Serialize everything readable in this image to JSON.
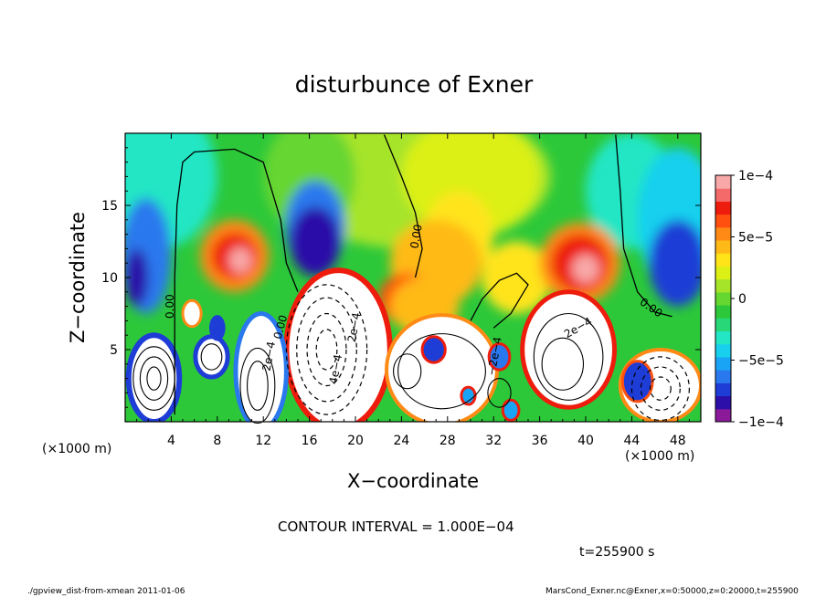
{
  "chart_data": {
    "type": "heatmap",
    "title": "disturbunce of Exner",
    "xlabel": "X−coordinate",
    "ylabel": "Z−coordinate",
    "x_unit": "(×1000 m)",
    "y_unit": "(×1000 m)",
    "xlim": [
      0,
      50
    ],
    "ylim": [
      0,
      20
    ],
    "x_ticks": [
      "4",
      "8",
      "12",
      "16",
      "20",
      "24",
      "28",
      "32",
      "36",
      "40",
      "44",
      "48"
    ],
    "x_tick_values": [
      4,
      8,
      12,
      16,
      20,
      24,
      28,
      32,
      36,
      40,
      44,
      48
    ],
    "y_ticks": [
      "5",
      "10",
      "15"
    ],
    "y_tick_values": [
      5,
      10,
      15
    ],
    "colorbar": {
      "range": [
        -0.0001,
        0.0001
      ],
      "labels": [
        "1e−4",
        "5e−5",
        "0",
        "−5e−5",
        "−1e−4"
      ],
      "label_values": [
        0.0001,
        5e-05,
        0,
        -5e-05,
        -0.0001
      ],
      "colors": [
        "#8a1a9a",
        "#2c0fa8",
        "#1e3cd6",
        "#2a78ee",
        "#1aa4f5",
        "#18d0ee",
        "#22e6c4",
        "#28d878",
        "#2cc83a",
        "#66d630",
        "#a6e42a",
        "#dcf016",
        "#ffe41a",
        "#ffba18",
        "#ff8a16",
        "#ff5010",
        "#ee1c0c",
        "#f46a6a",
        "#f8a8a8"
      ]
    },
    "contour_interval": "CONTOUR INTERVAL = 1.000E−04",
    "contour_labels": [
      "0.00",
      "0.00",
      "0.00",
      "0.00",
      "2e−4",
      "2e−4",
      "4e−4",
      "2e−4",
      "−2e−4"
    ],
    "time_label": "t=255900 s",
    "footer_left": "./gpview_dist-from-xmean   2011-01-06",
    "footer_right": "MarsCond_Exner.nc@Exner,x=0:50000,z=0:20000,t=255900"
  }
}
